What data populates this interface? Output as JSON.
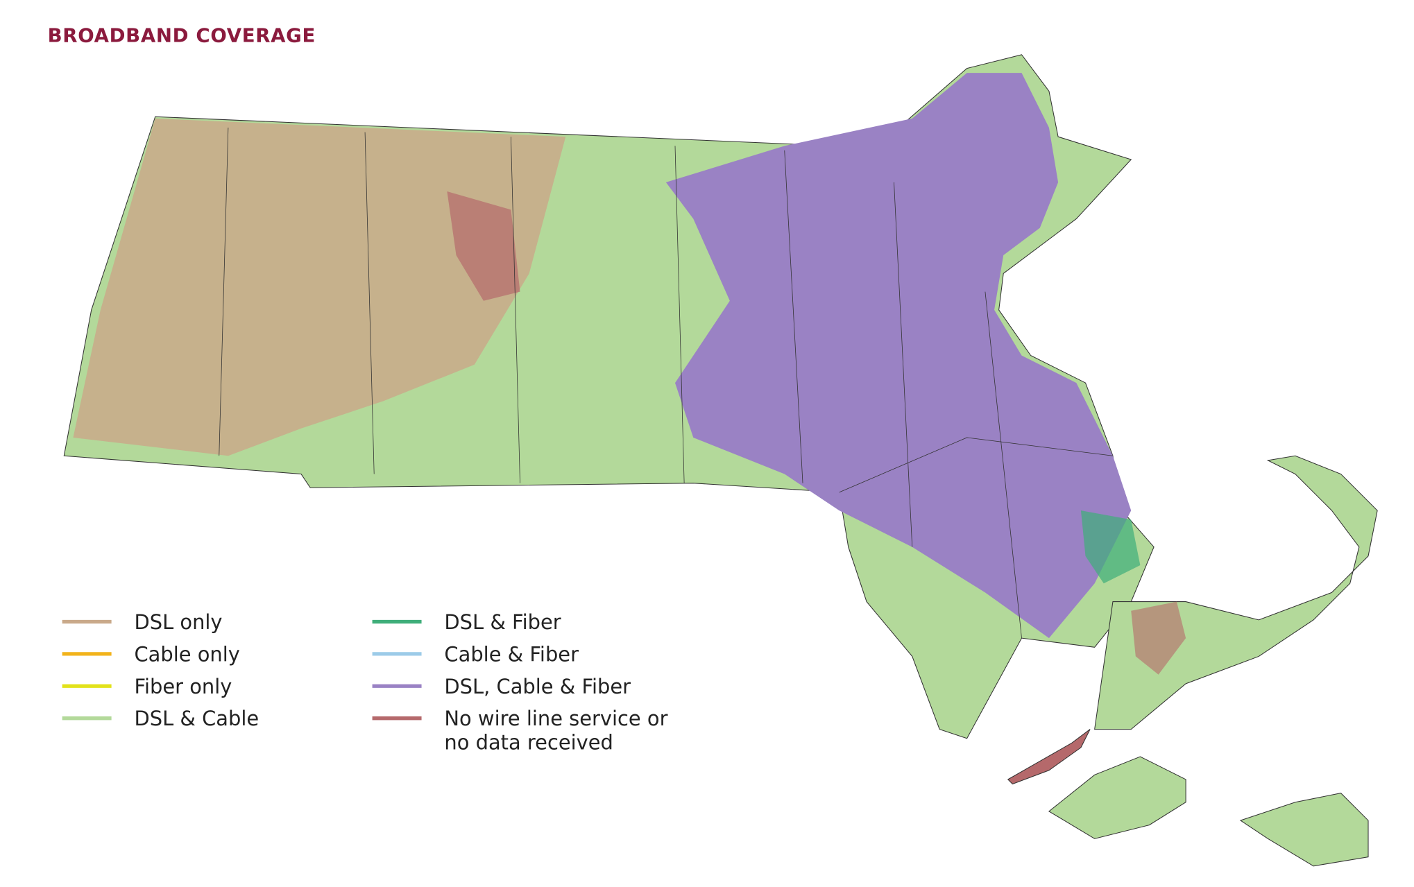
{
  "title": "BROADBAND COVERAGE",
  "legend": [
    {
      "label": "DSL only",
      "color": "#c9a98a"
    },
    {
      "label": "Cable only",
      "color": "#f2b31b"
    },
    {
      "label": "Fiber only",
      "color": "#e2e21a"
    },
    {
      "label": "DSL & Cable",
      "color": "#b3d99a"
    },
    {
      "label": "DSL & Fiber",
      "color": "#3fae7a"
    },
    {
      "label": "Cable & Fiber",
      "color": "#9ccbe8"
    },
    {
      "label": "DSL, Cable & Fiber",
      "color": "#9a82c4"
    },
    {
      "label": "No wire line service or no data received",
      "color": "#b5696b"
    }
  ]
}
